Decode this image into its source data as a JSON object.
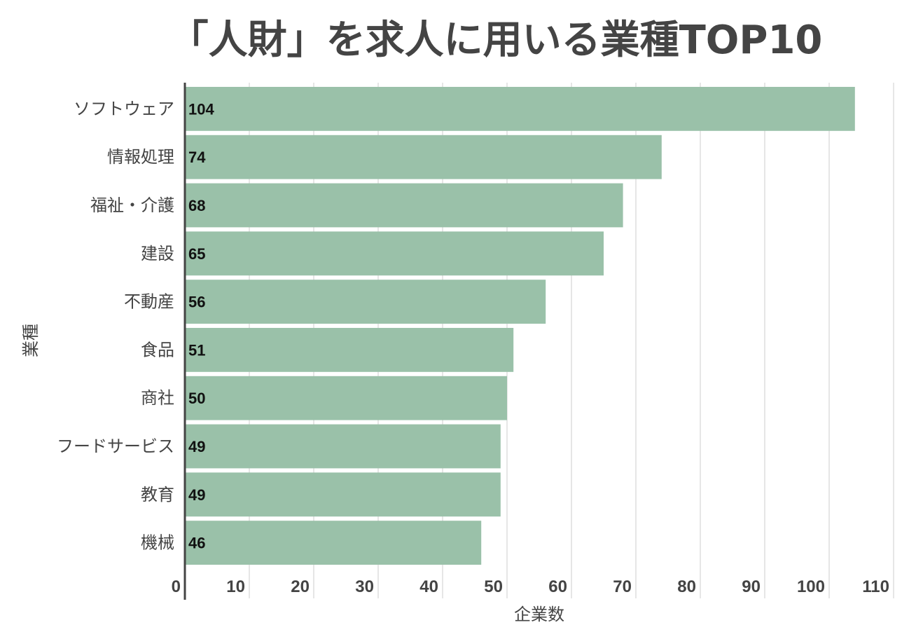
{
  "chart_data": {
    "type": "bar",
    "orientation": "horizontal",
    "title": "「人財」を求人に用いる業種TOP10",
    "xlabel": "企業数",
    "ylabel": "業種",
    "categories": [
      "ソフトウェア",
      "情報処理",
      "福祉・介護",
      "建設",
      "不動産",
      "食品",
      "商社",
      "フードサービス",
      "教育",
      "機械"
    ],
    "values": [
      104,
      74,
      68,
      65,
      56,
      51,
      50,
      49,
      49,
      46
    ],
    "xlim": [
      0,
      110
    ],
    "xticks": [
      0,
      10,
      20,
      30,
      40,
      50,
      60,
      70,
      80,
      90,
      100,
      110
    ],
    "grid": true,
    "legend": "none",
    "colors": {
      "bar": "#9ac1a9",
      "grid": "#dddddd",
      "axis": "#444444",
      "text": "#444444"
    }
  }
}
